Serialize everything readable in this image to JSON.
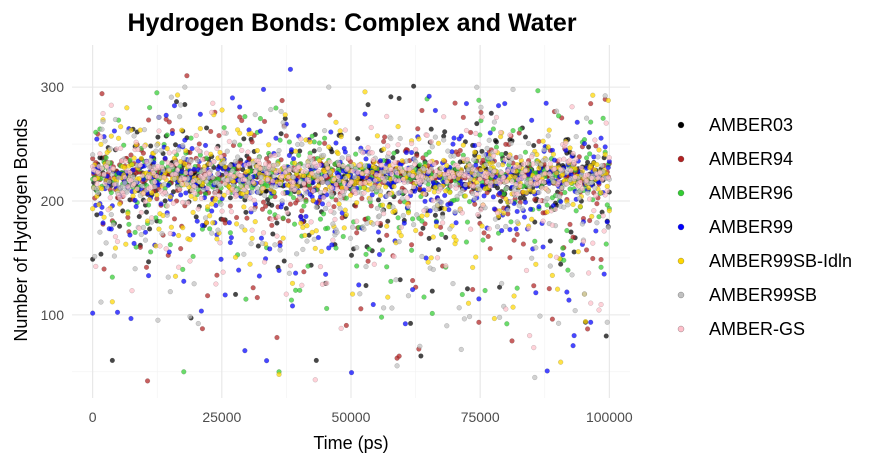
{
  "chart_data": {
    "type": "scatter",
    "title": "Hydrogen Bonds: Complex and Water",
    "xlabel": "Time (ps)",
    "ylabel": "Number of Hydrogen Bonds",
    "xlim": [
      -4000,
      104000
    ],
    "ylim": [
      27,
      337
    ],
    "x_ticks": [
      0,
      25000,
      50000,
      75000,
      100000
    ],
    "x_tick_labels": [
      "0",
      "25000",
      "50000",
      "75000",
      "100000"
    ],
    "y_ticks": [
      100,
      200,
      300
    ],
    "y_tick_labels": [
      "100",
      "200",
      "300"
    ],
    "grid": true,
    "legend_position": "right",
    "points_per_series": 500,
    "series": [
      {
        "name": "AMBER03",
        "color": "#000000",
        "center": 222,
        "spread": 28,
        "min": 60,
        "max": 325
      },
      {
        "name": "AMBER94",
        "color": "#b22222",
        "center": 222,
        "spread": 30,
        "min": 42,
        "max": 310
      },
      {
        "name": "AMBER96",
        "color": "#32cd32",
        "center": 223,
        "spread": 30,
        "min": 50,
        "max": 305
      },
      {
        "name": "AMBER99",
        "color": "#0000ff",
        "center": 220,
        "spread": 34,
        "min": 47,
        "max": 320
      },
      {
        "name": "AMBER99SB-Idln",
        "color": "#ffd700",
        "center": 222,
        "spread": 30,
        "min": 42,
        "max": 322
      },
      {
        "name": "AMBER99SB",
        "color": "#c0c0c0",
        "center": 222,
        "spread": 30,
        "min": 45,
        "max": 300
      },
      {
        "name": "AMBER-GS",
        "color": "#ffc0cb",
        "center": 223,
        "spread": 26,
        "min": 43,
        "max": 300
      }
    ]
  }
}
